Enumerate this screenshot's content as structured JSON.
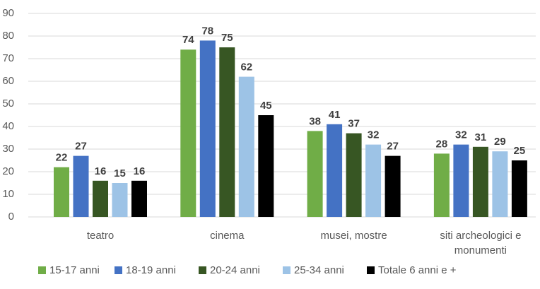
{
  "chart_data": {
    "type": "bar",
    "categories": [
      "teatro",
      "cinema",
      "musei, mostre",
      "siti archeologici e monumenti"
    ],
    "series": [
      {
        "name": "15-17 anni",
        "color": "#70ad47",
        "values": [
          22,
          74,
          38,
          28
        ]
      },
      {
        "name": "18-19 anni",
        "color": "#4472c4",
        "values": [
          27,
          78,
          41,
          32
        ]
      },
      {
        "name": "20-24 anni",
        "color": "#375623",
        "values": [
          16,
          75,
          37,
          31
        ]
      },
      {
        "name": "25-34 anni",
        "color": "#9dc3e6",
        "values": [
          15,
          62,
          32,
          29
        ]
      },
      {
        "name": "Totale 6 anni e +",
        "color": "#000000",
        "values": [
          16,
          45,
          27,
          25
        ]
      }
    ],
    "ylim": [
      0,
      90
    ],
    "yticks": [
      0,
      10,
      20,
      30,
      40,
      50,
      60,
      70,
      80,
      90
    ],
    "grid": true,
    "legend": "bottom"
  }
}
